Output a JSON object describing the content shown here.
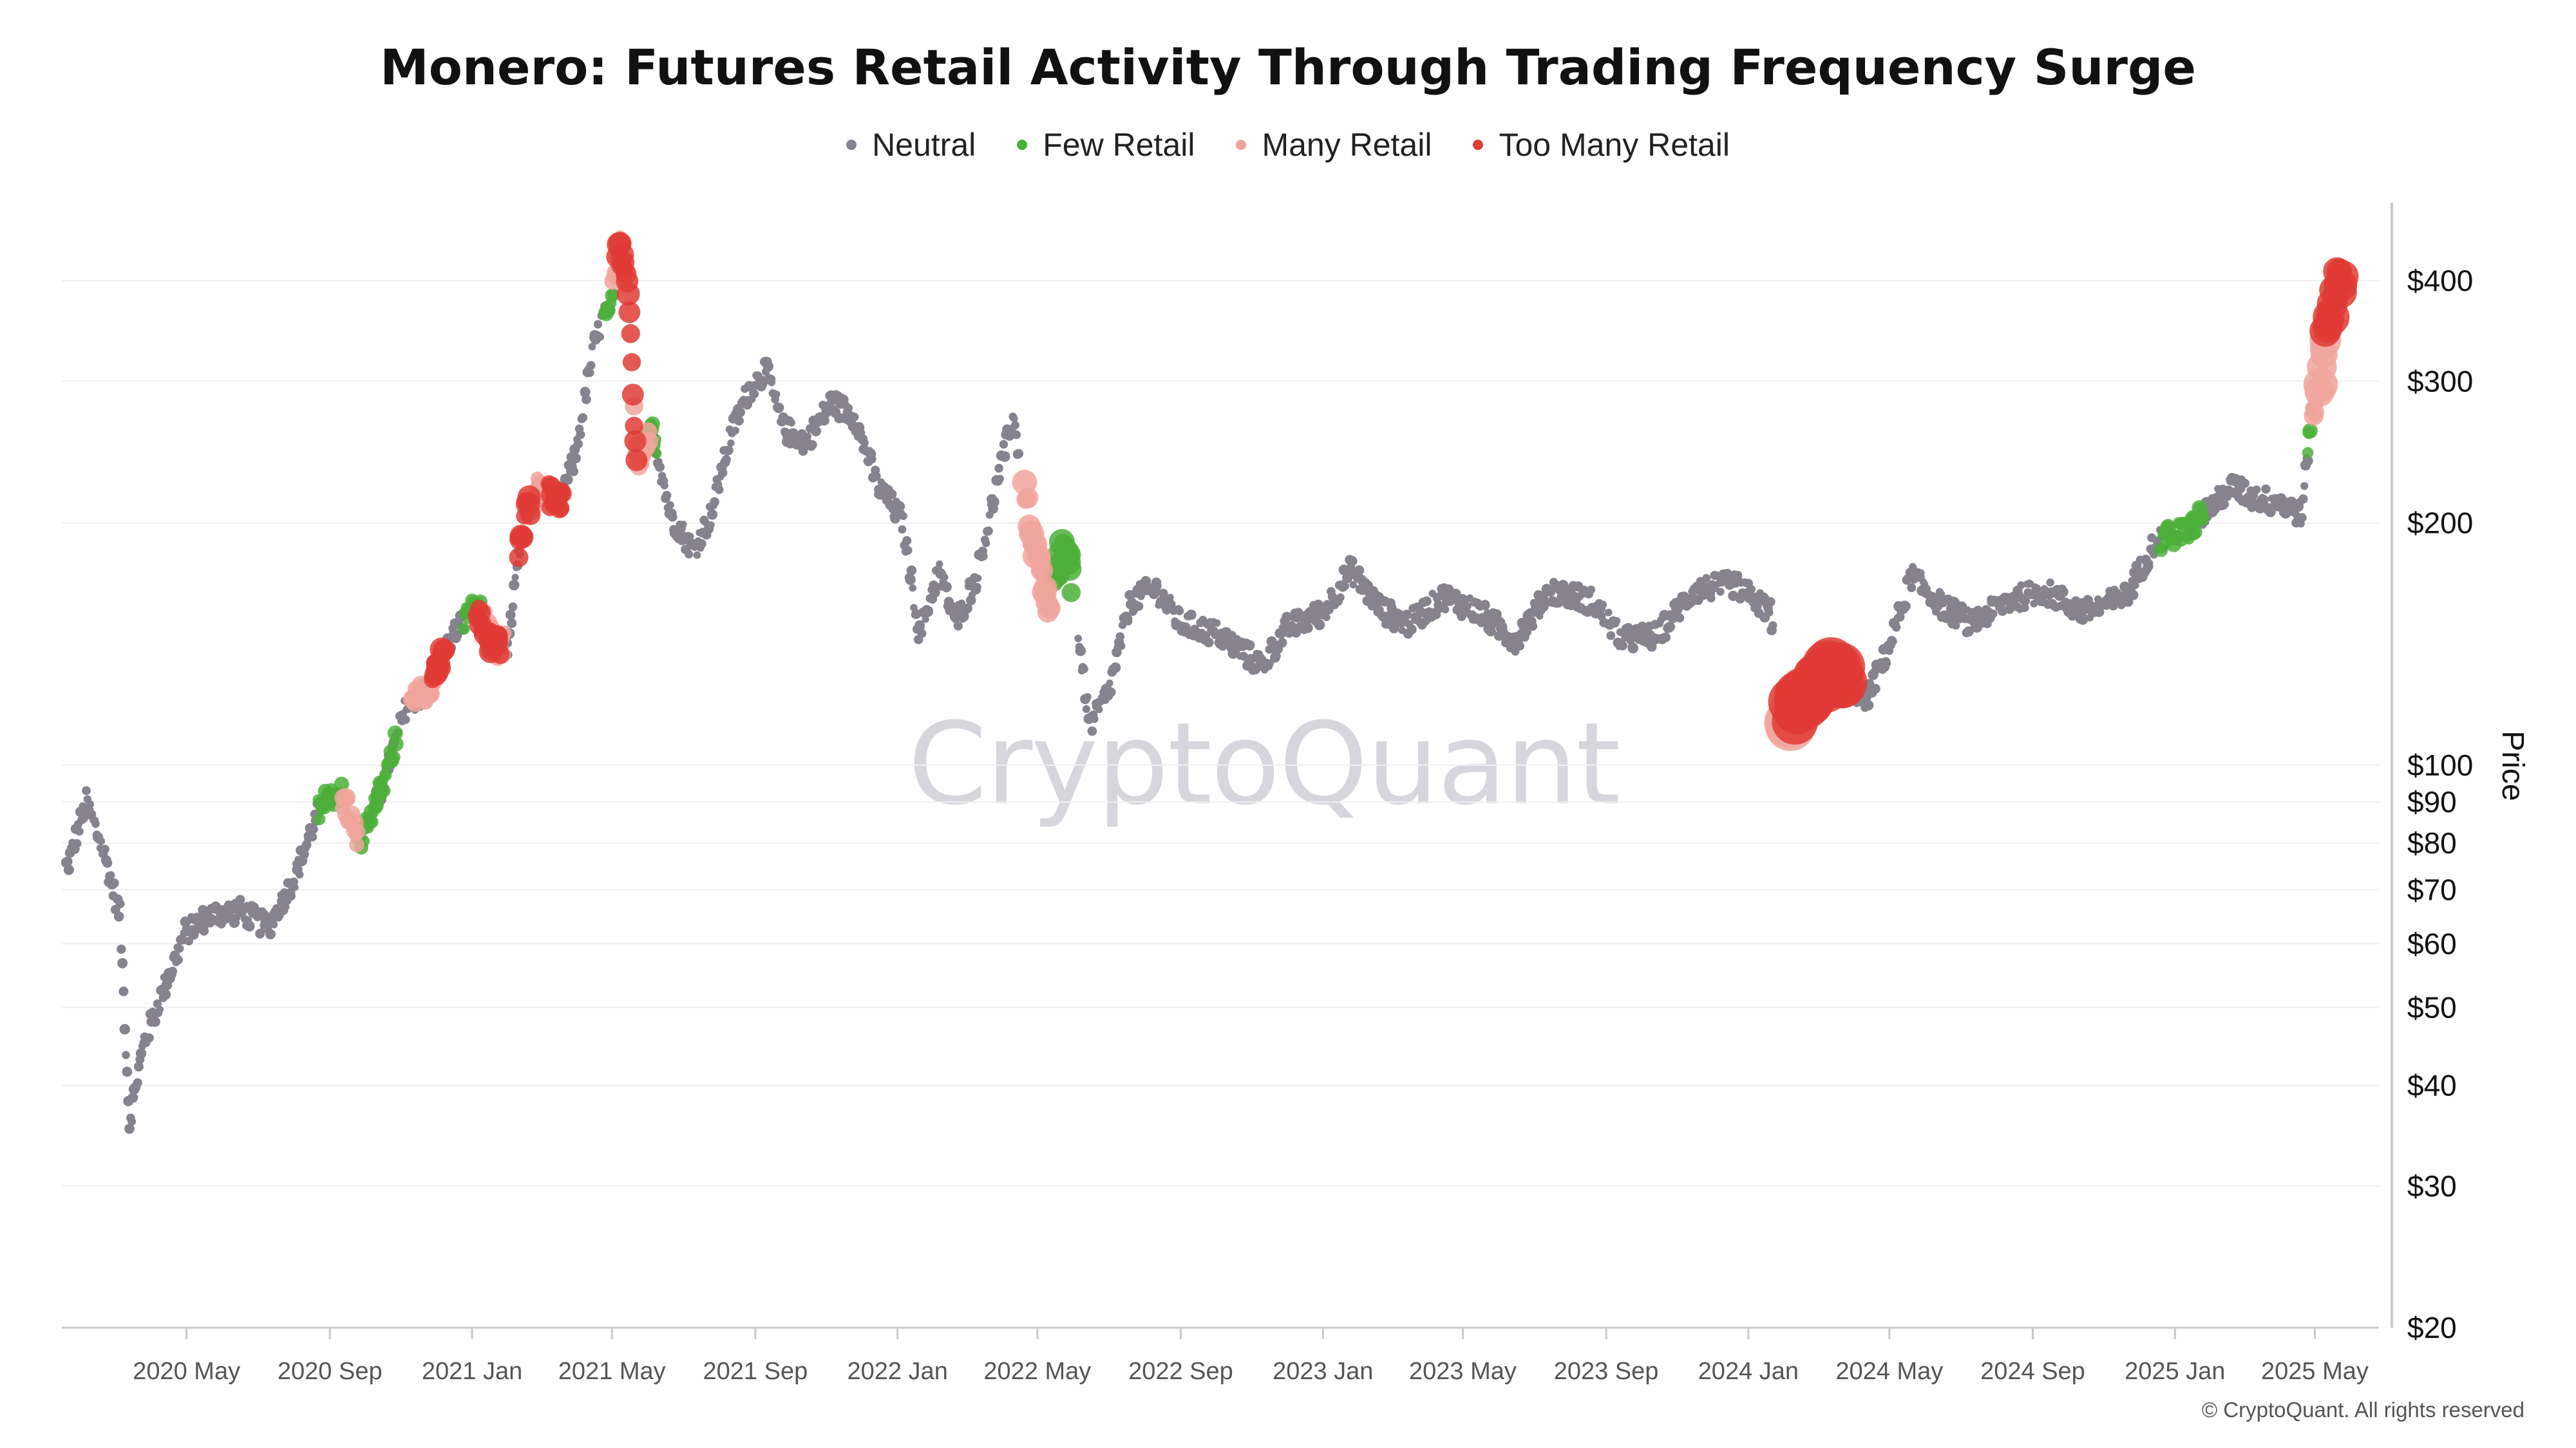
{
  "chart_data": {
    "type": "scatter",
    "title": "Monero: Futures Retail Activity Through Trading Frequency Surge",
    "ylabel": "Price",
    "y_scale": "log",
    "ylim": [
      20,
      500
    ],
    "xlim": [
      "2020-01-15",
      "2025-06-25"
    ],
    "grid": true,
    "legend_position": "top-center",
    "x_ticks": [
      "2020 May",
      "2020 Sep",
      "2021 Jan",
      "2021 May",
      "2021 Sep",
      "2022 Jan",
      "2022 May",
      "2022 Sep",
      "2023 Jan",
      "2023 May",
      "2023 Sep",
      "2024 Jan",
      "2024 May",
      "2024 Sep",
      "2025 Jan",
      "2025 May"
    ],
    "x_tick_dates": [
      "2020-05-01",
      "2020-09-01",
      "2021-01-01",
      "2021-05-01",
      "2021-09-01",
      "2022-01-01",
      "2022-05-01",
      "2022-09-01",
      "2023-01-01",
      "2023-05-01",
      "2023-09-01",
      "2024-01-01",
      "2024-05-01",
      "2024-09-01",
      "2025-01-01",
      "2025-05-01"
    ],
    "y_ticks": [
      20,
      30,
      40,
      50,
      60,
      70,
      80,
      90,
      100,
      200,
      300,
      400
    ],
    "y_tick_labels": [
      "$20",
      "$30",
      "$40",
      "$50",
      "$60",
      "$70",
      "$80",
      "$90",
      "$100",
      "$200",
      "$300",
      "$400"
    ],
    "price_path": [
      [
        "2020-01-20",
        75
      ],
      [
        "2020-02-05",
        90
      ],
      [
        "2020-02-20",
        78
      ],
      [
        "2020-03-05",
        65
      ],
      [
        "2020-03-13",
        36
      ],
      [
        "2020-03-25",
        45
      ],
      [
        "2020-04-10",
        52
      ],
      [
        "2020-04-30",
        62
      ],
      [
        "2020-05-20",
        65
      ],
      [
        "2020-06-15",
        66
      ],
      [
        "2020-07-10",
        63
      ],
      [
        "2020-08-01",
        72
      ],
      [
        "2020-08-25",
        90
      ],
      [
        "2020-09-10",
        93
      ],
      [
        "2020-09-25",
        80
      ],
      [
        "2020-10-15",
        93
      ],
      [
        "2020-11-05",
        118
      ],
      [
        "2020-11-25",
        125
      ],
      [
        "2020-12-15",
        145
      ],
      [
        "2021-01-05",
        158
      ],
      [
        "2021-01-20",
        140
      ],
      [
        "2021-02-01",
        142
      ],
      [
        "2021-02-15",
        205
      ],
      [
        "2021-03-01",
        225
      ],
      [
        "2021-03-15",
        210
      ],
      [
        "2021-03-30",
        240
      ],
      [
        "2021-04-15",
        330
      ],
      [
        "2021-04-30",
        385
      ],
      [
        "2021-05-08",
        440
      ],
      [
        "2021-05-15",
        390
      ],
      [
        "2021-05-22",
        235
      ],
      [
        "2021-06-05",
        260
      ],
      [
        "2021-06-20",
        205
      ],
      [
        "2021-07-10",
        185
      ],
      [
        "2021-07-25",
        205
      ],
      [
        "2021-08-10",
        255
      ],
      [
        "2021-08-25",
        290
      ],
      [
        "2021-09-10",
        310
      ],
      [
        "2021-09-25",
        262
      ],
      [
        "2021-10-15",
        252
      ],
      [
        "2021-11-05",
        283
      ],
      [
        "2021-11-25",
        272
      ],
      [
        "2021-12-15",
        222
      ],
      [
        "2022-01-05",
        202
      ],
      [
        "2022-01-20",
        145
      ],
      [
        "2022-02-05",
        175
      ],
      [
        "2022-02-20",
        150
      ],
      [
        "2022-03-10",
        172
      ],
      [
        "2022-03-30",
        232
      ],
      [
        "2022-04-10",
        272
      ],
      [
        "2022-04-25",
        200
      ],
      [
        "2022-05-10",
        158
      ],
      [
        "2022-05-25",
        192
      ],
      [
        "2022-06-15",
        112
      ],
      [
        "2022-07-01",
        123
      ],
      [
        "2022-07-20",
        160
      ],
      [
        "2022-08-10",
        166
      ],
      [
        "2022-09-01",
        150
      ],
      [
        "2022-10-01",
        146
      ],
      [
        "2022-11-10",
        133
      ],
      [
        "2022-12-01",
        148
      ],
      [
        "2023-01-01",
        155
      ],
      [
        "2023-01-25",
        175
      ],
      [
        "2023-02-20",
        156
      ],
      [
        "2023-03-15",
        150
      ],
      [
        "2023-04-15",
        162
      ],
      [
        "2023-05-15",
        155
      ],
      [
        "2023-06-15",
        143
      ],
      [
        "2023-07-15",
        165
      ],
      [
        "2023-08-20",
        160
      ],
      [
        "2023-09-15",
        143
      ],
      [
        "2023-10-15",
        145
      ],
      [
        "2023-11-15",
        165
      ],
      [
        "2023-12-20",
        168
      ],
      [
        "2024-01-20",
        155
      ],
      [
        "2024-02-05",
        115
      ],
      [
        "2024-02-25",
        125
      ],
      [
        "2024-03-15",
        132
      ],
      [
        "2024-04-10",
        120
      ],
      [
        "2024-05-01",
        140
      ],
      [
        "2024-05-20",
        172
      ],
      [
        "2024-06-15",
        158
      ],
      [
        "2024-07-10",
        150
      ],
      [
        "2024-08-10",
        160
      ],
      [
        "2024-09-10",
        165
      ],
      [
        "2024-10-15",
        155
      ],
      [
        "2024-11-20",
        162
      ],
      [
        "2024-12-15",
        190
      ],
      [
        "2025-01-10",
        195
      ],
      [
        "2025-01-25",
        205
      ],
      [
        "2025-02-20",
        222
      ],
      [
        "2025-03-10",
        215
      ],
      [
        "2025-04-01",
        212
      ],
      [
        "2025-04-20",
        205
      ],
      [
        "2025-04-27",
        265
      ],
      [
        "2025-05-05",
        300
      ],
      [
        "2025-05-12",
        350
      ],
      [
        "2025-05-20",
        400
      ]
    ],
    "series": [
      {
        "name": "Neutral",
        "color": "#86838e",
        "ranges": [
          [
            "2020-01-18",
            "2020-08-22"
          ],
          [
            "2020-10-10",
            "2020-11-20"
          ],
          [
            "2020-12-05",
            "2020-12-25"
          ],
          [
            "2021-01-22",
            "2021-02-12"
          ],
          [
            "2021-03-20",
            "2021-04-25"
          ],
          [
            "2021-05-25",
            "2022-04-15"
          ],
          [
            "2022-06-05",
            "2024-01-22"
          ],
          [
            "2024-03-25",
            "2024-12-20"
          ],
          [
            "2025-01-25",
            "2025-04-25"
          ]
        ]
      },
      {
        "name": "Few Retail",
        "color": "#4caf3a",
        "ranges": [
          [
            "2020-08-22",
            "2020-09-12"
          ],
          [
            "2020-09-25",
            "2020-10-28"
          ],
          [
            "2020-11-20",
            "2020-12-05"
          ],
          [
            "2020-12-25",
            "2021-01-10"
          ],
          [
            "2021-04-25",
            "2021-05-02"
          ],
          [
            "2021-05-28",
            "2021-06-08"
          ],
          [
            "2022-05-15",
            "2022-05-30"
          ],
          [
            "2024-12-20",
            "2025-01-25"
          ],
          [
            "2025-04-25",
            "2025-04-29"
          ]
        ]
      },
      {
        "name": "Many Retail",
        "color": "#f0a49c",
        "ranges": [
          [
            "2020-09-12",
            "2020-09-25"
          ],
          [
            "2020-11-10",
            "2020-11-28"
          ],
          [
            "2021-01-10",
            "2021-01-28"
          ],
          [
            "2021-02-20",
            "2021-03-05"
          ],
          [
            "2021-05-02",
            "2021-05-10"
          ],
          [
            "2021-05-20",
            "2021-06-02"
          ],
          [
            "2022-04-20",
            "2022-05-12"
          ],
          [
            "2024-02-05",
            "2024-02-08"
          ],
          [
            "2025-04-29",
            "2025-05-10"
          ]
        ]
      },
      {
        "name": "Too Many Retail",
        "color": "#e03b36",
        "ranges": [
          [
            "2020-11-28",
            "2020-12-08"
          ],
          [
            "2021-01-05",
            "2021-01-25"
          ],
          [
            "2021-02-10",
            "2021-02-20"
          ],
          [
            "2021-03-08",
            "2021-03-20"
          ],
          [
            "2021-05-06",
            "2021-05-22"
          ],
          [
            "2024-02-08",
            "2024-03-22"
          ],
          [
            "2025-05-10",
            "2025-05-25"
          ]
        ]
      }
    ]
  },
  "watermark": "CryptoQuant",
  "copyright": "© CryptoQuant. All rights reserved"
}
